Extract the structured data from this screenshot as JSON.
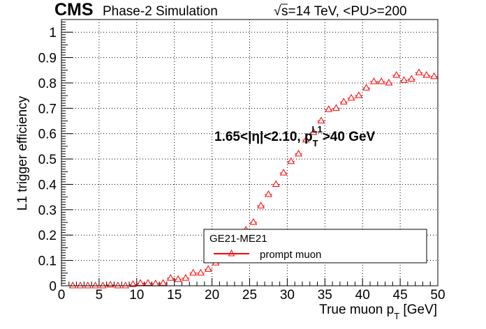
{
  "header": {
    "cms": "CMS",
    "simulation": "Phase-2 Simulation",
    "sqrt_symbol": "√",
    "energy": "s=14 TeV, <PU>=200"
  },
  "annotation": {
    "eta_range": "1.65<|η|<2.10, p",
    "sub": "T",
    "sup": "L1",
    "cut": ">40 GeV"
  },
  "legend": {
    "title": "GE21-ME21",
    "entries": [
      {
        "label": "prompt muon",
        "color": "#ff0000"
      }
    ]
  },
  "chart_data": {
    "type": "scatter",
    "ylabel": "L1 trigger efficiency",
    "xlabel_main": "True muon p",
    "xlabel_sub": "T",
    "xlabel_unit": " [GeV]",
    "xlim": [
      0,
      50
    ],
    "ylim": [
      0,
      1.05
    ],
    "xticks": [
      0,
      5,
      10,
      15,
      20,
      25,
      30,
      35,
      40,
      45,
      50
    ],
    "yticks": [
      0,
      0.1,
      0.2,
      0.3,
      0.4,
      0.5,
      0.6,
      0.7,
      0.8,
      0.9,
      1
    ],
    "ytick_labels": [
      "0",
      "0.1",
      "0.2",
      "0.3",
      "0.4",
      "0.5",
      "0.6",
      "0.7",
      "0.8",
      "0.9",
      "1"
    ],
    "grid": true,
    "series": [
      {
        "name": "prompt muon",
        "color": "#ff0000",
        "marker": "open-triangle",
        "x": [
          1.5,
          2.5,
          3.5,
          4.5,
          5.5,
          6.5,
          7.5,
          8.5,
          9.5,
          10.5,
          11.5,
          12.5,
          13.5,
          14.5,
          15.5,
          16.5,
          17.5,
          18.5,
          19.5,
          20.5,
          21.5,
          22.5,
          23.5,
          24.5,
          25.5,
          26.5,
          27.5,
          28.5,
          29.5,
          30.5,
          31.5,
          32.5,
          33.5,
          34.5,
          35.5,
          36.5,
          37.5,
          38.5,
          39.5,
          40.5,
          41.5,
          42.5,
          43.5,
          44.5,
          45.5,
          46.5,
          47.5,
          48.5,
          49.5
        ],
        "y": [
          0.0,
          0.0,
          0.0,
          0.0,
          0.0,
          0.003,
          0.0,
          0.0,
          0.005,
          0.01,
          0.01,
          0.008,
          0.01,
          0.03,
          0.025,
          0.03,
          0.05,
          0.05,
          0.065,
          0.09,
          0.11,
          0.14,
          0.18,
          0.22,
          0.25,
          0.315,
          0.36,
          0.4,
          0.445,
          0.49,
          0.52,
          0.575,
          0.605,
          0.65,
          0.695,
          0.7,
          0.725,
          0.74,
          0.75,
          0.78,
          0.805,
          0.805,
          0.8,
          0.83,
          0.81,
          0.815,
          0.84,
          0.83,
          0.825
        ]
      }
    ]
  }
}
